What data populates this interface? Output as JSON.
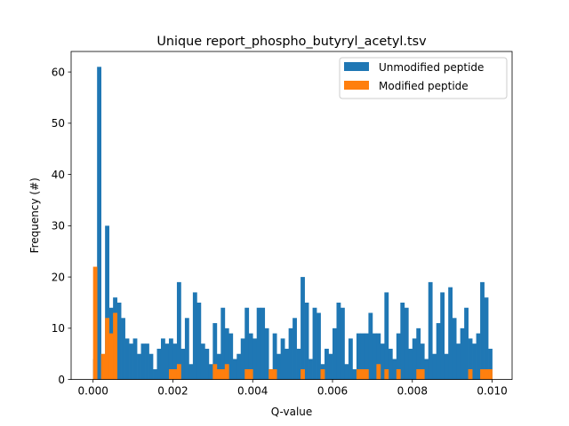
{
  "chart_data": {
    "type": "bar",
    "title": "Unique report_phospho_butyryl_acetyl.tsv",
    "xlabel": "Q-value",
    "ylabel": "Frequency (#)",
    "xlim": [
      -0.00055,
      0.0105
    ],
    "ylim": [
      0,
      64
    ],
    "xticks": [
      0.0,
      0.002,
      0.004,
      0.006,
      0.008,
      0.01
    ],
    "xtick_labels": [
      "0.000",
      "0.002",
      "0.004",
      "0.006",
      "0.008",
      "0.010"
    ],
    "yticks": [
      0,
      10,
      20,
      30,
      40,
      50,
      60
    ],
    "ytick_labels": [
      "0",
      "10",
      "20",
      "30",
      "40",
      "50",
      "60"
    ],
    "bin_start": 0.0,
    "bin_width": 0.0001,
    "legend_position": "top-right",
    "series": [
      {
        "name": "Unmodified peptide",
        "color": "#1f77b4",
        "values": [
          4,
          61,
          4,
          30,
          14,
          16,
          15,
          12,
          8,
          7,
          8,
          5,
          7,
          7,
          5,
          2,
          6,
          8,
          7,
          8,
          7,
          19,
          6,
          12,
          3,
          17,
          15,
          7,
          6,
          3,
          11,
          5,
          14,
          10,
          9,
          4,
          5,
          8,
          14,
          9,
          8,
          14,
          14,
          10,
          2,
          9,
          5,
          8,
          6,
          10,
          12,
          6,
          20,
          15,
          4,
          14,
          13,
          3,
          6,
          5,
          10,
          15,
          14,
          3,
          8,
          2,
          9,
          9,
          9,
          13,
          9,
          9,
          7,
          17,
          6,
          4,
          9,
          15,
          14,
          6,
          8,
          10,
          7,
          4,
          19,
          5,
          11,
          17,
          5,
          18,
          12,
          7,
          10,
          14,
          8,
          7,
          9,
          19,
          16,
          6
        ]
      },
      {
        "name": "Modified peptide",
        "color": "#ff7f0e",
        "values": [
          22,
          0,
          5,
          12,
          9,
          13,
          0,
          0,
          0,
          0,
          0,
          0,
          0,
          0,
          0,
          0,
          0,
          0,
          0,
          2,
          2,
          3,
          0,
          0,
          0,
          0,
          0,
          0,
          0,
          0,
          3,
          2,
          2,
          3,
          0,
          0,
          0,
          0,
          2,
          2,
          0,
          0,
          0,
          0,
          2,
          2,
          0,
          0,
          0,
          0,
          0,
          0,
          2,
          0,
          0,
          0,
          0,
          2,
          0,
          0,
          0,
          0,
          0,
          0,
          0,
          0,
          2,
          2,
          2,
          0,
          0,
          3,
          0,
          2,
          0,
          0,
          2,
          0,
          0,
          0,
          0,
          2,
          2,
          0,
          0,
          0,
          0,
          0,
          0,
          0,
          0,
          0,
          0,
          0,
          2,
          0,
          0,
          2,
          2,
          2
        ]
      }
    ]
  }
}
